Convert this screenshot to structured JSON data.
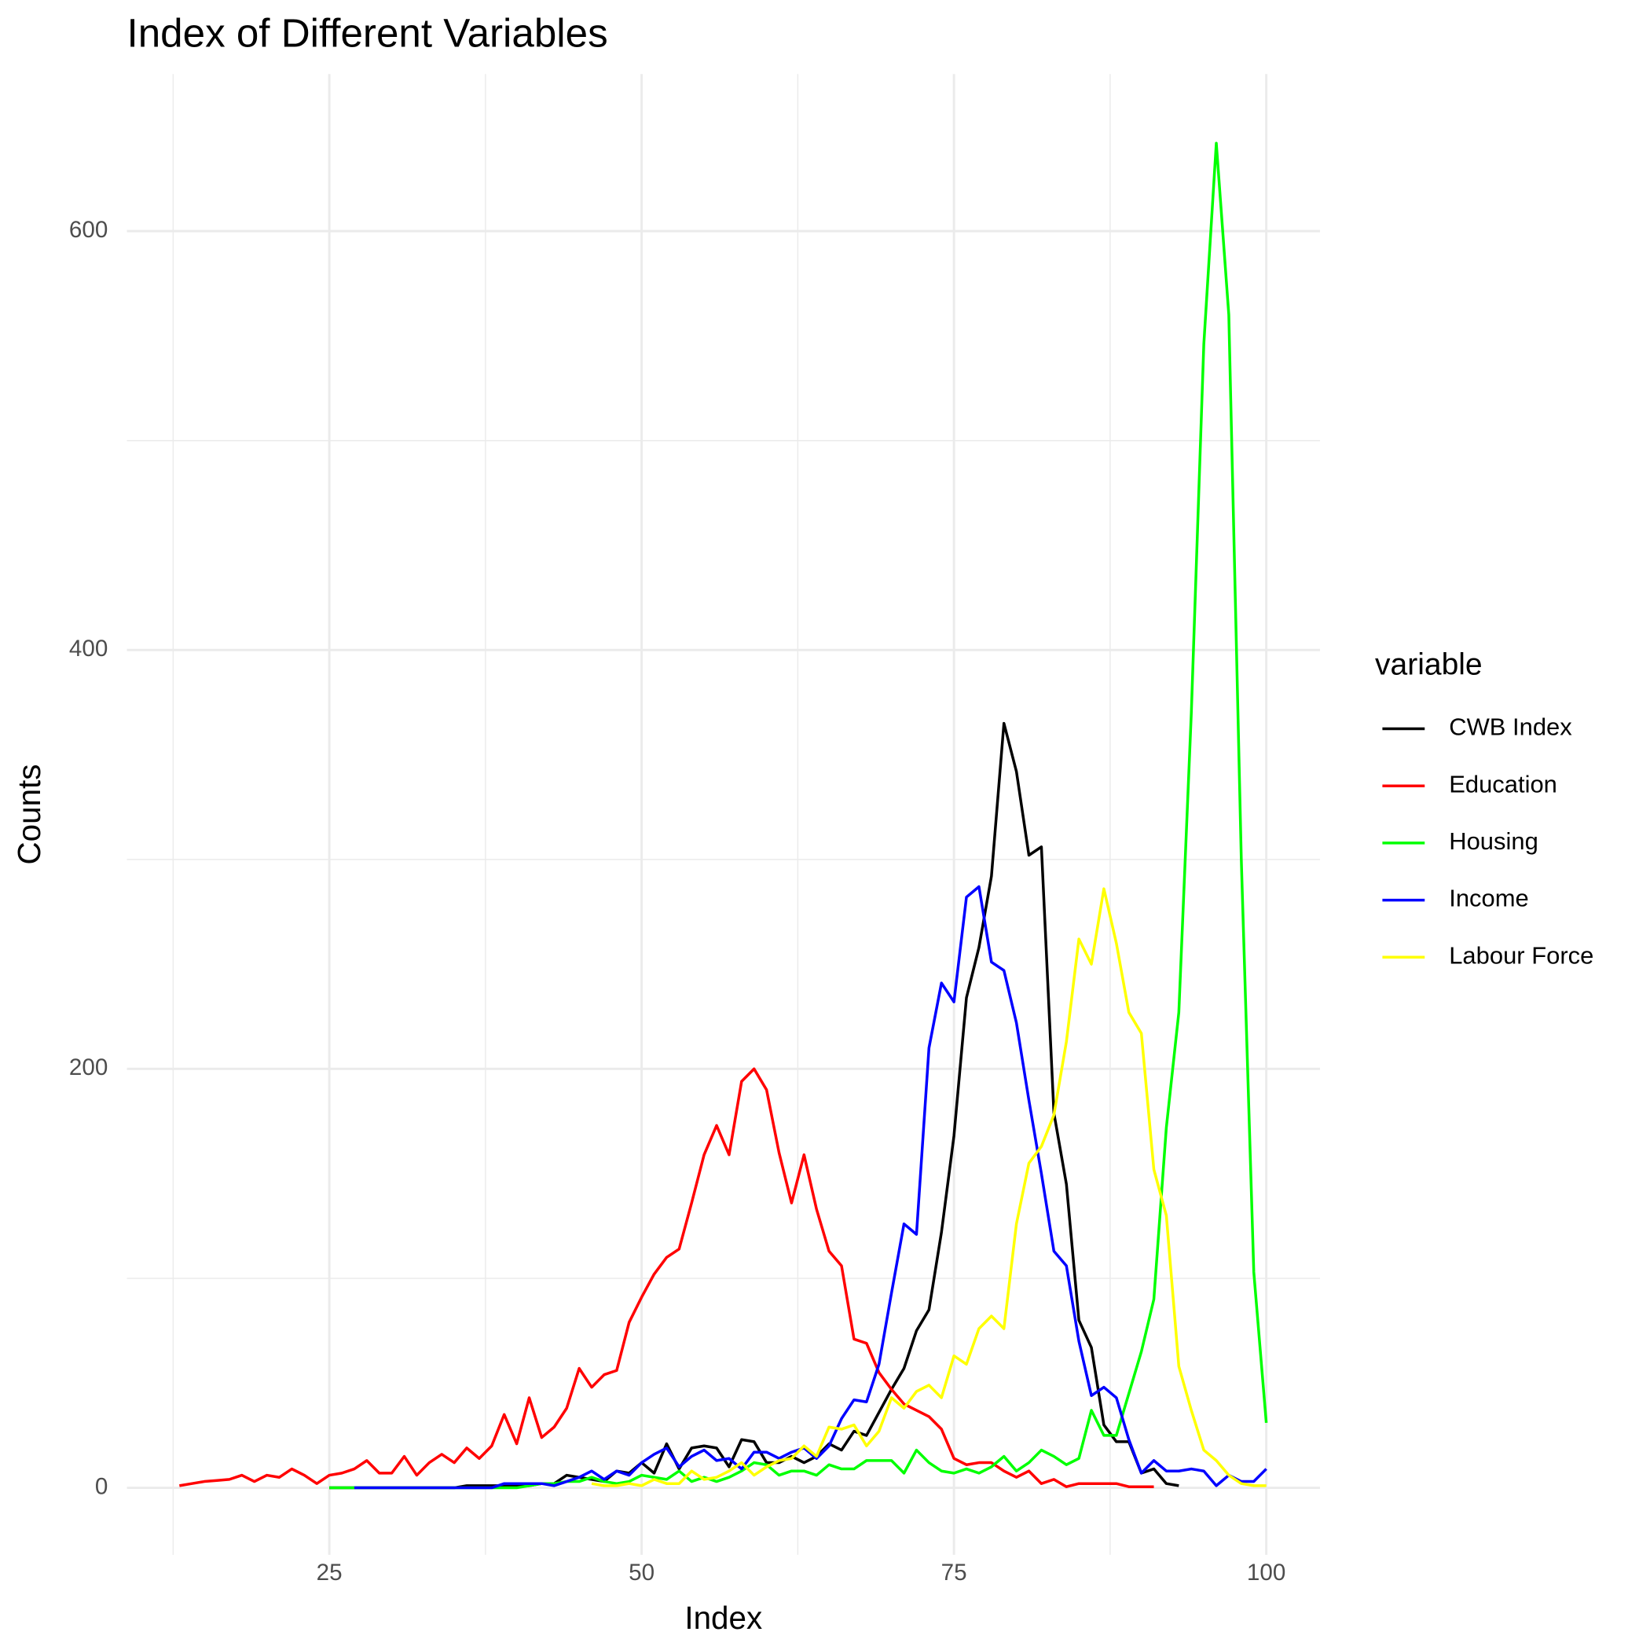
{
  "chart_data": {
    "type": "line",
    "title": "Index of Different Variables",
    "x_label": "Index",
    "y_label": "Counts",
    "legend_title": "variable",
    "legend_position": "right",
    "grid": true,
    "xlim": [
      8.8,
      104.3
    ],
    "ylim": [
      -32,
      675
    ],
    "xticks": [
      25,
      50,
      75,
      100
    ],
    "yticks": [
      0,
      200,
      400,
      600
    ],
    "series": [
      {
        "name": "CWB Index",
        "color": "#000000",
        "x": [
          25,
          26,
          27,
          28,
          29,
          30,
          31,
          32,
          33,
          34,
          35,
          36,
          37,
          38,
          39,
          40,
          41,
          42,
          43,
          44,
          45,
          46,
          47,
          48,
          49,
          50,
          51,
          52,
          53,
          54,
          55,
          56,
          57,
          58,
          59,
          60,
          61,
          62,
          63,
          64,
          65,
          66,
          67,
          68,
          69,
          70,
          71,
          72,
          73,
          74,
          75,
          76,
          77,
          78,
          79,
          80,
          81,
          82,
          83,
          84,
          85,
          86,
          87,
          88,
          89,
          90,
          91,
          92,
          93
        ],
        "values": [
          0,
          0,
          0,
          0,
          0,
          0,
          0,
          0,
          0,
          0,
          0,
          1,
          1,
          1,
          1,
          1,
          1,
          2,
          2,
          6,
          5,
          4,
          3,
          8,
          7,
          12,
          7,
          21,
          9,
          19,
          20,
          19,
          10,
          23,
          22,
          12,
          12,
          15,
          12,
          15,
          21,
          18,
          27,
          25,
          36,
          47,
          57,
          75,
          85,
          122,
          168,
          234,
          258,
          292,
          365,
          342,
          302,
          306,
          179,
          145,
          80,
          67,
          30,
          22,
          22,
          7,
          9,
          2,
          1
        ]
      },
      {
        "name": "Education",
        "color": "#ff0000",
        "x": [
          13,
          14,
          15,
          16,
          17,
          18,
          19,
          20,
          21,
          22,
          23,
          24,
          25,
          26,
          27,
          28,
          29,
          30,
          31,
          32,
          33,
          34,
          35,
          36,
          37,
          38,
          39,
          40,
          41,
          42,
          43,
          44,
          45,
          46,
          47,
          48,
          49,
          50,
          51,
          52,
          53,
          54,
          55,
          56,
          57,
          58,
          59,
          60,
          61,
          62,
          63,
          64,
          65,
          66,
          67,
          68,
          69,
          70,
          71,
          72,
          73,
          74,
          75,
          76,
          77,
          78,
          79,
          80,
          81,
          82,
          83,
          84,
          85,
          86,
          87,
          88,
          89,
          90,
          91
        ],
        "values": [
          1,
          2,
          3,
          3.5,
          4,
          6,
          3,
          6,
          5,
          9,
          6,
          2,
          6,
          7,
          9,
          13,
          7,
          7,
          15,
          6,
          12,
          16,
          12,
          19,
          14,
          20,
          35,
          21,
          43,
          24,
          29,
          38,
          57,
          48,
          54,
          56,
          79,
          91,
          102,
          110,
          114,
          136,
          159,
          173,
          159,
          194,
          200,
          190,
          160,
          136,
          159,
          133,
          113,
          106,
          71,
          69,
          55,
          47,
          40,
          37,
          34,
          28,
          14,
          11,
          12,
          12,
          8,
          5,
          8,
          2,
          4,
          0.5,
          2,
          2,
          2,
          2,
          0.5,
          0.5,
          0.5
        ]
      },
      {
        "name": "Housing",
        "color": "#00ff00",
        "x": [
          25,
          26,
          27,
          28,
          29,
          30,
          31,
          32,
          33,
          34,
          35,
          36,
          37,
          38,
          39,
          40,
          41,
          42,
          43,
          44,
          45,
          46,
          47,
          48,
          49,
          50,
          51,
          52,
          53,
          54,
          55,
          56,
          57,
          58,
          59,
          60,
          61,
          62,
          63,
          64,
          65,
          66,
          67,
          68,
          69,
          70,
          71,
          72,
          73,
          74,
          75,
          76,
          77,
          78,
          79,
          80,
          81,
          82,
          83,
          84,
          85,
          86,
          87,
          88,
          89,
          90,
          91,
          92,
          93,
          94,
          95,
          96,
          97,
          98,
          99,
          100
        ],
        "values": [
          0,
          0,
          0,
          0,
          0,
          0,
          0,
          0,
          0,
          0,
          0,
          0,
          0,
          0,
          0,
          0,
          1,
          2,
          2,
          3,
          3,
          5,
          3,
          2,
          3,
          6,
          5,
          4,
          8,
          3,
          5,
          3,
          5,
          8,
          12,
          11,
          6,
          8,
          8,
          6,
          11,
          9,
          9,
          13,
          13,
          13,
          7,
          18,
          12,
          8,
          7,
          9,
          7,
          10,
          15,
          8,
          12,
          18,
          15,
          11,
          14,
          37,
          25,
          25,
          45,
          65,
          90,
          172,
          227,
          370,
          546,
          642,
          560,
          300,
          103,
          31
        ]
      },
      {
        "name": "Income",
        "color": "#0000ff",
        "x": [
          27,
          28,
          29,
          30,
          31,
          32,
          33,
          34,
          35,
          36,
          37,
          38,
          39,
          40,
          41,
          42,
          43,
          44,
          45,
          46,
          47,
          48,
          49,
          50,
          51,
          52,
          53,
          54,
          55,
          56,
          57,
          58,
          59,
          60,
          61,
          62,
          63,
          64,
          65,
          66,
          67,
          68,
          69,
          70,
          71,
          72,
          73,
          74,
          75,
          76,
          77,
          78,
          79,
          80,
          81,
          82,
          83,
          84,
          85,
          86,
          87,
          88,
          89,
          90,
          91,
          92,
          93,
          94,
          95,
          96,
          97,
          98,
          99,
          100
        ],
        "values": [
          0,
          0,
          0,
          0,
          0,
          0,
          0,
          0,
          0,
          0,
          0,
          0,
          2,
          2,
          2,
          2,
          1,
          3,
          5,
          8,
          4,
          8,
          6,
          12,
          16,
          19,
          10,
          15,
          18,
          13,
          14,
          9,
          17,
          17,
          14,
          17,
          19,
          14,
          20,
          33,
          42,
          41,
          59,
          93,
          126,
          121,
          210,
          241,
          232,
          282,
          287,
          251,
          247,
          222,
          185,
          150,
          113,
          106,
          70,
          44,
          48,
          43,
          23,
          7,
          13,
          8,
          8,
          9,
          8,
          1,
          6,
          3,
          3,
          9
        ]
      },
      {
        "name": "Labour Force",
        "color": "#ffff00",
        "x": [
          46,
          47,
          48,
          49,
          50,
          51,
          52,
          53,
          54,
          55,
          56,
          57,
          58,
          59,
          60,
          61,
          62,
          63,
          64,
          65,
          66,
          67,
          68,
          69,
          70,
          71,
          72,
          73,
          74,
          75,
          76,
          77,
          78,
          79,
          80,
          81,
          82,
          83,
          84,
          85,
          86,
          87,
          88,
          89,
          90,
          91,
          92,
          93,
          94,
          95,
          96,
          97,
          98,
          99,
          100
        ],
        "values": [
          2,
          1,
          1,
          2,
          1,
          4,
          2,
          2,
          8,
          4,
          5,
          8,
          12,
          6,
          10,
          13,
          14,
          20,
          15,
          29,
          28,
          30,
          20,
          27,
          43,
          38,
          46,
          49,
          43,
          63,
          59,
          76,
          82,
          76,
          126,
          155,
          163,
          178,
          213,
          262,
          250,
          286,
          260,
          227,
          217,
          152,
          130,
          58,
          37,
          18,
          13,
          6,
          2,
          1,
          1
        ]
      }
    ]
  }
}
